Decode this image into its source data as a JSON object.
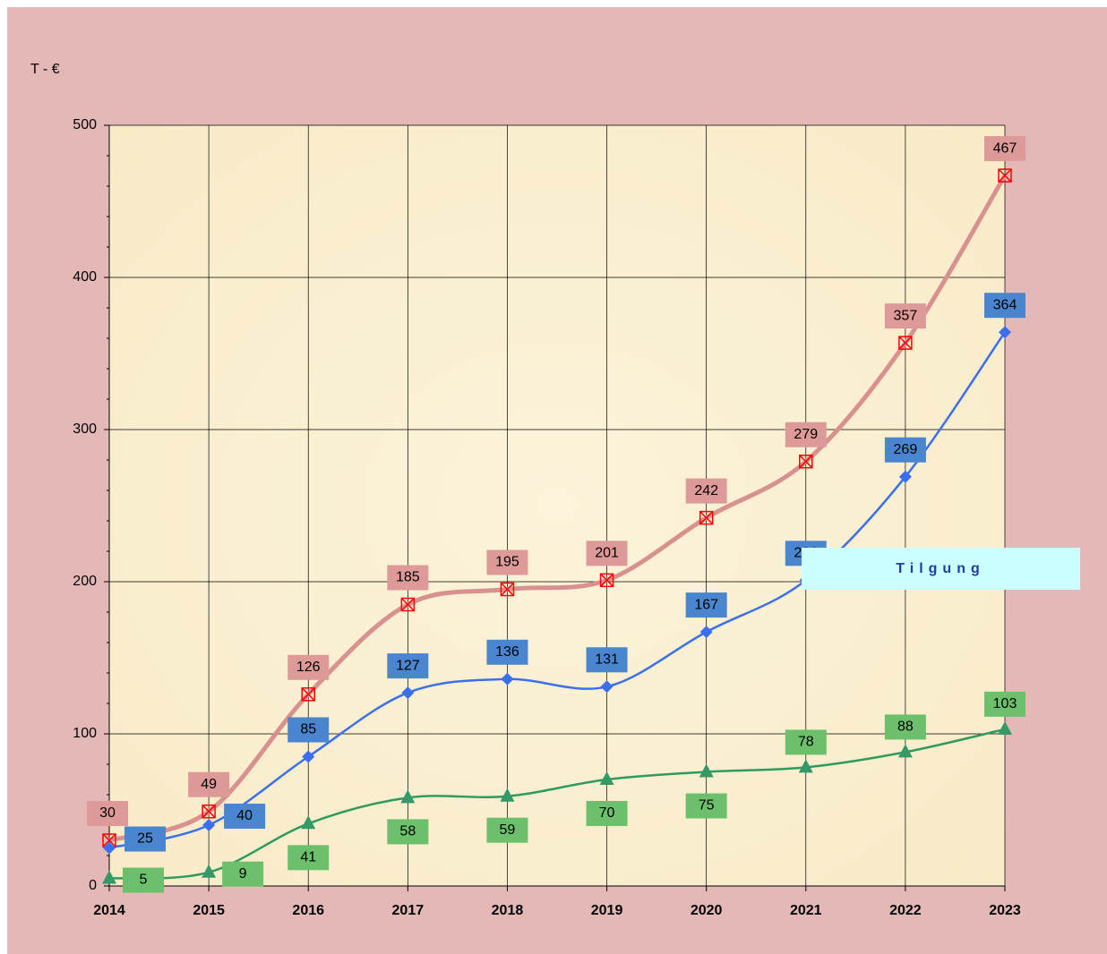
{
  "chart_data": {
    "type": "line",
    "y_label": "T - €",
    "categories": [
      "2014",
      "2015",
      "2016",
      "2017",
      "2018",
      "2019",
      "2020",
      "2021",
      "2022",
      "2023"
    ],
    "series": [
      {
        "color": "#d8918f",
        "marker_color": "#ff0000",
        "marker": "x-square",
        "label_color": "#dd9a98",
        "values": [
          30,
          49,
          126,
          185,
          195,
          201,
          242,
          279,
          357,
          467
        ]
      },
      {
        "name": "Tilgung",
        "color": "#3a6ff0",
        "marker_color": "#3a6ff0",
        "marker": "diamond",
        "label_color": "#4a86d0",
        "values": [
          25,
          40,
          85,
          127,
          136,
          131,
          167,
          201,
          269,
          364
        ]
      },
      {
        "color": "#2e9a5e",
        "marker_color": "#339966",
        "marker": "triangle",
        "label_color": "#6cc06c",
        "values": [
          5,
          9,
          41,
          58,
          59,
          70,
          75,
          78,
          88,
          103
        ]
      }
    ],
    "ylim": [
      0,
      500
    ],
    "yticks": [
      0,
      100,
      200,
      300,
      400,
      500
    ],
    "grid": true
  }
}
